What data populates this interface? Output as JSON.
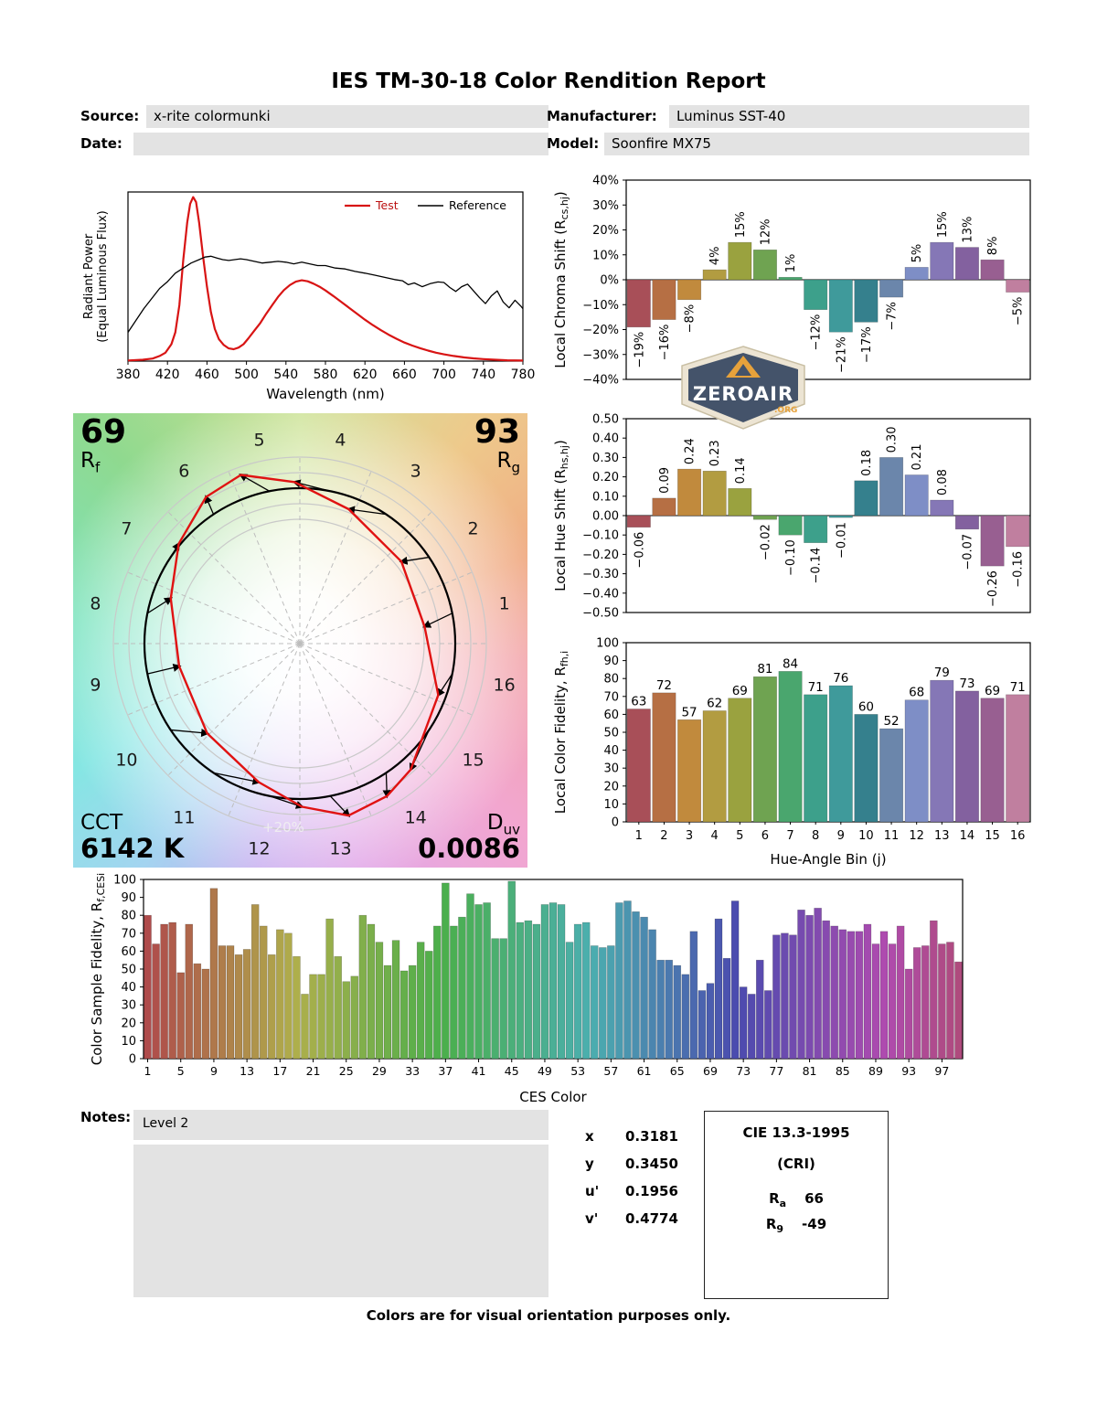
{
  "report": {
    "title": "IES TM-30-18 Color Rendition Report",
    "fields": {
      "source_label": "Source:",
      "source_value": "x-rite colormunki",
      "date_label": "Date:",
      "date_value": "",
      "manufacturer_label": "Manufacturer:",
      "manufacturer_value": "Luminus SST-40",
      "model_label": "Model:",
      "model_value": "Soonfire MX75"
    },
    "notes_label": "Notes:",
    "notes_value": "Level 2",
    "footer": "Colors are for visual orientation purposes only.",
    "watermark": {
      "name": "ZEROAIR",
      "suffix": ".ORG"
    }
  },
  "summary": {
    "rf_value": "69",
    "rf_label": "R",
    "rf_sub": "f",
    "rg_value": "93",
    "rg_label": "R",
    "rg_sub": "g",
    "cct_label": "CCT",
    "cct_value": "6142 K",
    "duv_label": "D",
    "duv_sub": "uv",
    "duv_value": "0.0086",
    "ring_label": "+20%"
  },
  "chromaticity": {
    "rows": [
      {
        "label": "x",
        "value": "0.3181"
      },
      {
        "label": "y",
        "value": "0.3450"
      },
      {
        "label": "u'",
        "value": "0.1956"
      },
      {
        "label": "v'",
        "value": "0.4774"
      }
    ]
  },
  "cri": {
    "title": "CIE 13.3-1995",
    "subtitle": "(CRI)",
    "ra_label": "R",
    "ra_sub": "a",
    "ra_value": "66",
    "r9_label": "R",
    "r9_sub": "9",
    "r9_value": "-49"
  },
  "hue_bin_colors": [
    "#a84f58",
    "#b66f44",
    "#c18a3d",
    "#b29c41",
    "#9aa23f",
    "#6fa351",
    "#4aa66e",
    "#3da08b",
    "#3f9a9b",
    "#35808d",
    "#6b86ab",
    "#7e8ec6",
    "#8577b6",
    "#83619f",
    "#985f91",
    "#c07f9f"
  ],
  "ces_color_model": {
    "hue_start": 0,
    "hue_end": 330,
    "saturation": 40,
    "lightness": 49
  },
  "chart_data": [
    {
      "id": "spd",
      "type": "line",
      "xlabel": "Wavelength (nm)",
      "ylabel_line1": "Radiant Power",
      "ylabel_line2": "(Equal Luminous Flux)",
      "xlim": [
        380,
        780
      ],
      "ylim": [
        0,
        1
      ],
      "xticks": [
        380,
        420,
        460,
        500,
        540,
        580,
        620,
        660,
        700,
        740,
        780
      ],
      "legend": [
        "Test",
        "Reference"
      ],
      "series": [
        {
          "name": "Test",
          "color": "#d81414",
          "width": 2.2,
          "points": [
            [
              380,
              0.004
            ],
            [
              395,
              0.008
            ],
            [
              405,
              0.015
            ],
            [
              412,
              0.03
            ],
            [
              418,
              0.05
            ],
            [
              424,
              0.1
            ],
            [
              428,
              0.17
            ],
            [
              432,
              0.33
            ],
            [
              436,
              0.6
            ],
            [
              440,
              0.82
            ],
            [
              443,
              0.93
            ],
            [
              446,
              0.97
            ],
            [
              449,
              0.94
            ],
            [
              452,
              0.82
            ],
            [
              456,
              0.62
            ],
            [
              460,
              0.44
            ],
            [
              464,
              0.29
            ],
            [
              468,
              0.19
            ],
            [
              472,
              0.13
            ],
            [
              477,
              0.095
            ],
            [
              482,
              0.075
            ],
            [
              487,
              0.07
            ],
            [
              492,
              0.08
            ],
            [
              497,
              0.1
            ],
            [
              502,
              0.135
            ],
            [
              508,
              0.18
            ],
            [
              514,
              0.225
            ],
            [
              520,
              0.28
            ],
            [
              526,
              0.33
            ],
            [
              532,
              0.38
            ],
            [
              538,
              0.42
            ],
            [
              544,
              0.45
            ],
            [
              550,
              0.47
            ],
            [
              556,
              0.478
            ],
            [
              562,
              0.472
            ],
            [
              568,
              0.458
            ],
            [
              574,
              0.44
            ],
            [
              580,
              0.418
            ],
            [
              588,
              0.385
            ],
            [
              596,
              0.35
            ],
            [
              604,
              0.315
            ],
            [
              612,
              0.28
            ],
            [
              620,
              0.245
            ],
            [
              628,
              0.213
            ],
            [
              636,
              0.183
            ],
            [
              644,
              0.156
            ],
            [
              652,
              0.132
            ],
            [
              660,
              0.11
            ],
            [
              668,
              0.092
            ],
            [
              676,
              0.076
            ],
            [
              684,
              0.062
            ],
            [
              692,
              0.05
            ],
            [
              700,
              0.04
            ],
            [
              710,
              0.03
            ],
            [
              720,
              0.022
            ],
            [
              730,
              0.016
            ],
            [
              740,
              0.012
            ],
            [
              752,
              0.008
            ],
            [
              764,
              0.005
            ],
            [
              780,
              0.003
            ]
          ]
        },
        {
          "name": "Reference",
          "color": "#000000",
          "width": 1.3,
          "points": [
            [
              380,
              0.17
            ],
            [
              388,
              0.24
            ],
            [
              396,
              0.31
            ],
            [
              404,
              0.37
            ],
            [
              412,
              0.43
            ],
            [
              420,
              0.47
            ],
            [
              428,
              0.52
            ],
            [
              436,
              0.55
            ],
            [
              444,
              0.58
            ],
            [
              452,
              0.6
            ],
            [
              458,
              0.615
            ],
            [
              464,
              0.62
            ],
            [
              470,
              0.61
            ],
            [
              476,
              0.6
            ],
            [
              482,
              0.595
            ],
            [
              488,
              0.6
            ],
            [
              494,
              0.605
            ],
            [
              500,
              0.6
            ],
            [
              508,
              0.59
            ],
            [
              516,
              0.58
            ],
            [
              524,
              0.585
            ],
            [
              532,
              0.59
            ],
            [
              540,
              0.585
            ],
            [
              548,
              0.575
            ],
            [
              556,
              0.585
            ],
            [
              564,
              0.575
            ],
            [
              572,
              0.565
            ],
            [
              580,
              0.565
            ],
            [
              590,
              0.55
            ],
            [
              600,
              0.545
            ],
            [
              610,
              0.53
            ],
            [
              620,
              0.52
            ],
            [
              630,
              0.508
            ],
            [
              640,
              0.495
            ],
            [
              650,
              0.482
            ],
            [
              658,
              0.475
            ],
            [
              664,
              0.452
            ],
            [
              670,
              0.462
            ],
            [
              678,
              0.44
            ],
            [
              686,
              0.458
            ],
            [
              694,
              0.468
            ],
            [
              700,
              0.465
            ],
            [
              706,
              0.435
            ],
            [
              712,
              0.412
            ],
            [
              718,
              0.44
            ],
            [
              724,
              0.455
            ],
            [
              730,
              0.415
            ],
            [
              736,
              0.375
            ],
            [
              742,
              0.34
            ],
            [
              748,
              0.385
            ],
            [
              754,
              0.415
            ],
            [
              760,
              0.35
            ],
            [
              766,
              0.315
            ],
            [
              772,
              0.36
            ],
            [
              778,
              0.325
            ],
            [
              780,
              0.31
            ]
          ]
        }
      ]
    },
    {
      "id": "chroma_shift",
      "type": "bar",
      "ylabel_parts": [
        {
          "t": "Local Chroma Shift (R"
        },
        {
          "t": "cs,hj",
          "sub": true
        },
        {
          "t": ")",
          "up": true
        }
      ],
      "ylim": [
        -40,
        40
      ],
      "ytick_step": 10,
      "value_format": "percent",
      "categories": [
        1,
        2,
        3,
        4,
        5,
        6,
        7,
        8,
        9,
        10,
        11,
        12,
        13,
        14,
        15,
        16
      ],
      "values": [
        -19,
        -16,
        -8,
        4,
        15,
        12,
        1,
        -12,
        -21,
        -17,
        -7,
        5,
        15,
        13,
        8,
        -5
      ]
    },
    {
      "id": "hue_shift",
      "type": "bar",
      "ylabel_parts": [
        {
          "t": "Local Hue Shift (R"
        },
        {
          "t": "hs,hj",
          "sub": true
        },
        {
          "t": ")",
          "up": true
        }
      ],
      "ylim": [
        -0.5,
        0.5
      ],
      "ytick_step": 0.1,
      "value_format": "decimal2",
      "categories": [
        1,
        2,
        3,
        4,
        5,
        6,
        7,
        8,
        9,
        10,
        11,
        12,
        13,
        14,
        15,
        16
      ],
      "values": [
        -0.06,
        0.09,
        0.24,
        0.23,
        0.14,
        -0.02,
        -0.1,
        -0.14,
        -0.01,
        0.18,
        0.3,
        0.21,
        0.08,
        -0.07,
        -0.26,
        -0.16
      ]
    },
    {
      "id": "local_fidelity",
      "type": "bar",
      "ylabel_parts": [
        {
          "t": "Local Color Fidelity, R"
        },
        {
          "t": "fh,i",
          "sub": true
        }
      ],
      "xlabel": "Hue-Angle Bin (j)",
      "ylim": [
        0,
        100
      ],
      "ytick_step": 10,
      "categories": [
        1,
        2,
        3,
        4,
        5,
        6,
        7,
        8,
        9,
        10,
        11,
        12,
        13,
        14,
        15,
        16
      ],
      "values": [
        63,
        72,
        57,
        62,
        69,
        81,
        84,
        71,
        76,
        60,
        52,
        68,
        79,
        73,
        69,
        71
      ]
    },
    {
      "id": "ces_fidelity",
      "type": "bar",
      "ylabel_parts": [
        {
          "t": "Color Sample Fidelity, R"
        },
        {
          "t": "f,CESi",
          "sub": true
        }
      ],
      "xlabel": "CES Color",
      "ylim": [
        0,
        100
      ],
      "ytick_step": 10,
      "xticks": [
        1,
        5,
        9,
        13,
        17,
        21,
        25,
        29,
        33,
        37,
        41,
        45,
        49,
        53,
        57,
        61,
        65,
        69,
        73,
        77,
        81,
        85,
        89,
        93,
        97
      ],
      "values": [
        80,
        64,
        75,
        76,
        48,
        75,
        53,
        50,
        95,
        63,
        63,
        58,
        61,
        86,
        74,
        58,
        72,
        70,
        57,
        36,
        47,
        47,
        78,
        57,
        43,
        46,
        80,
        75,
        65,
        52,
        66,
        49,
        52,
        65,
        60,
        74,
        98,
        74,
        79,
        92,
        86,
        87,
        67,
        67,
        99,
        76,
        77,
        75,
        86,
        87,
        86,
        65,
        75,
        76,
        63,
        62,
        63,
        87,
        88,
        82,
        79,
        72,
        55,
        55,
        52,
        47,
        71,
        38,
        42,
        78,
        56,
        88,
        40,
        36,
        55,
        38,
        69,
        70,
        69,
        83,
        80,
        84,
        77,
        74,
        72,
        71,
        71,
        75,
        64,
        71,
        64,
        74,
        50,
        62,
        63,
        77,
        64,
        65,
        54
      ]
    },
    {
      "id": "color_vector",
      "type": "polar",
      "bins": [
        1,
        2,
        3,
        4,
        5,
        6,
        7,
        8,
        9,
        10,
        11,
        12,
        13,
        14,
        15,
        16
      ],
      "rf": 69,
      "rg": 93,
      "cct": "6142 K",
      "duv": 0.0086,
      "ring_fractions": [
        0.8,
        0.9,
        1.0,
        1.1,
        1.2
      ],
      "outer_ring_label": "+20%"
    }
  ]
}
